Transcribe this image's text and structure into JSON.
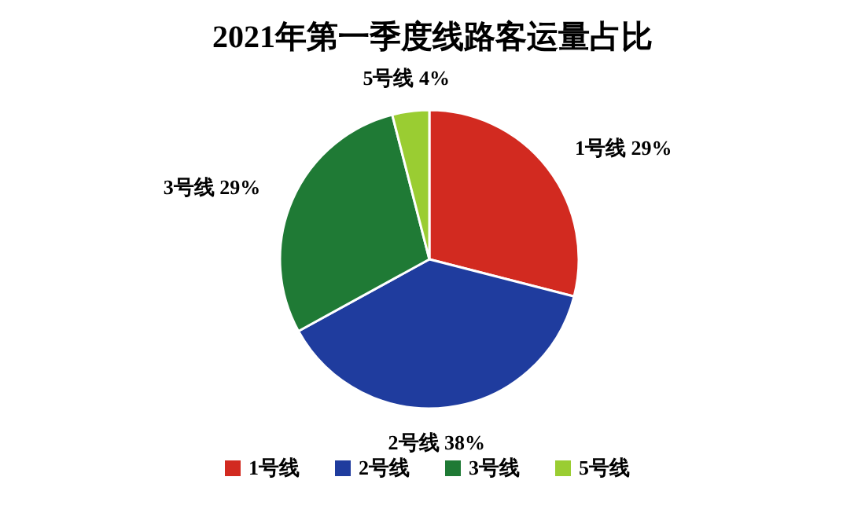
{
  "chart_data": {
    "type": "pie",
    "title": "2021年第一季度线路客运量占比",
    "categories": [
      "1号线",
      "2号线",
      "3号线",
      "5号线"
    ],
    "values": [
      29,
      38,
      29,
      4
    ],
    "colors": [
      "#d22a20",
      "#1f3c9e",
      "#1f7a35",
      "#9acd32"
    ],
    "value_labels": [
      "1号线 29%",
      "2号线 38%",
      "3号线 29%",
      "5号线 4%"
    ],
    "legend": "bottom"
  }
}
